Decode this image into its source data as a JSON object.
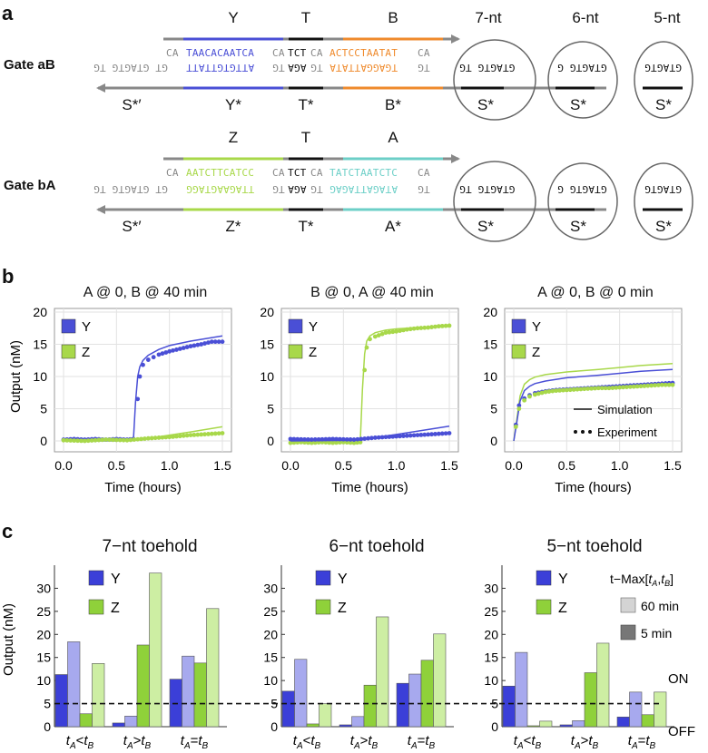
{
  "panel_labels": {
    "a": "a",
    "b": "b",
    "c": "c"
  },
  "panel_a": {
    "toehold_headers": [
      "7-nt",
      "6-nt",
      "5-nt"
    ],
    "gates": [
      {
        "name": "Gate aB",
        "top_domains": [
          "Y",
          "T",
          "B"
        ],
        "bottom_domains": [
          "S*′",
          "Y*",
          "T*",
          "B*",
          "S*"
        ],
        "top_seq": {
          "ca1": "CA",
          "d1": "TAACACAATCA",
          "ca2": "CA",
          "t": "TCT",
          "ca3": "CA",
          "d2": "ACTCCTAATAT",
          "ca4": "CA"
        },
        "bottom_seq": {
          "left": "GT GTAGTG TG",
          "d1": "ATTGTGTTATT",
          "tg1": "TG",
          "t": "AGA",
          "tg2": "TG",
          "d2": "TGAGGATTATA",
          "tg3": "TG",
          "s7": "GTAGTG TG"
        },
        "toehold_seqs": [
          "GTAGTG TG",
          "GTAGTG G",
          "GTAGTG"
        ],
        "d1_color": "#4a4fd6",
        "d2_color": "#ef8a2c"
      },
      {
        "name": "Gate bA",
        "top_domains": [
          "Z",
          "T",
          "A"
        ],
        "bottom_domains": [
          "S*′",
          "Z*",
          "T*",
          "A*",
          "S*"
        ],
        "top_seq": {
          "ca1": "CA",
          "d1": "AATCTTCATCC",
          "ca2": "CA",
          "t": "TCT",
          "ca3": "CA",
          "d2": "TATCTAATCTC",
          "ca4": "CA"
        },
        "bottom_seq": {
          "left": "GT GTAGTG TG",
          "d1": "TTAGAAGTAGG",
          "tg1": "TG",
          "t": "AGA",
          "tg2": "TG",
          "d2": "ATAGATTAGAG",
          "tg3": "TG",
          "s7": "GTAGTG TG"
        },
        "toehold_seqs": [
          "GTAGTG TG",
          "GTAGTG G",
          "GTAGTG"
        ],
        "d1_color": "#a8d84a",
        "d2_color": "#6ccfc7"
      }
    ]
  },
  "panel_b": {
    "plots": [
      {
        "title": "A @ 0, B @ 40 min"
      },
      {
        "title": "B @ 0, A @ 40 min"
      },
      {
        "title": "A @ 0, B @ 0 min"
      }
    ],
    "ylabel": "Output (nM)",
    "xlabel": "Time (hours)",
    "x_ticks": [
      "0.0",
      "0.5",
      "1.0",
      "1.5"
    ],
    "y_ticks": [
      "0",
      "5",
      "10",
      "15",
      "20"
    ],
    "legend": {
      "Y": "Y",
      "Z": "Z"
    },
    "line_legend": {
      "sim": "Simulation",
      "exp": "Experiment"
    }
  },
  "panel_c": {
    "ylabel": "Output (nM)",
    "y_ticks": [
      "0",
      "5",
      "10",
      "15",
      "20",
      "25",
      "30"
    ],
    "on_label": "ON",
    "off_label": "OFF",
    "legend_title": "t−Max[tA,tB]",
    "legend_items": [
      "60 min",
      "5 min"
    ]
  },
  "chart_data": [
    {
      "type": "line",
      "title": "A @ 0, B @ 40 min",
      "xlabel": "Time (hours)",
      "ylabel": "Output (nM)",
      "xlim": [
        0,
        1.5
      ],
      "ylim": [
        0,
        20
      ],
      "series": [
        {
          "name": "Y simulation",
          "x": [
            0,
            0.5,
            0.66,
            0.68,
            0.7,
            0.72,
            0.75,
            0.8,
            0.9,
            1.0,
            1.2,
            1.5
          ],
          "y": [
            0,
            0,
            0.2,
            6,
            10,
            11.5,
            12.5,
            13.3,
            14.2,
            14.8,
            15.5,
            16.3
          ]
        },
        {
          "name": "Y experiment",
          "x": [
            0.0,
            0.1,
            0.2,
            0.3,
            0.4,
            0.5,
            0.6,
            0.66,
            0.7,
            0.72,
            0.75,
            0.8,
            0.85,
            0.9,
            1.0,
            1.1,
            1.2,
            1.3,
            1.4,
            1.5
          ],
          "y": [
            0.2,
            0.3,
            0.2,
            0.3,
            0.2,
            0.3,
            0.2,
            0.3,
            6.5,
            10,
            11.8,
            12.6,
            13.0,
            13.4,
            13.9,
            14.3,
            14.7,
            15.0,
            15.4,
            15.4
          ]
        },
        {
          "name": "Z simulation",
          "x": [
            0,
            0.6,
            0.8,
            1.0,
            1.2,
            1.5
          ],
          "y": [
            0,
            0.1,
            0.4,
            0.9,
            1.4,
            2.2
          ]
        },
        {
          "name": "Z experiment",
          "x": [
            0.0,
            0.2,
            0.4,
            0.6,
            0.8,
            1.0,
            1.2,
            1.4,
            1.5
          ],
          "y": [
            0.1,
            0.0,
            0.2,
            0.1,
            0.4,
            0.6,
            0.9,
            1.1,
            1.2
          ]
        }
      ]
    },
    {
      "type": "line",
      "title": "B @ 0, A @ 40 min",
      "xlabel": "Time (hours)",
      "ylabel": "Output (nM)",
      "xlim": [
        0,
        1.5
      ],
      "ylim": [
        0,
        20
      ],
      "series": [
        {
          "name": "Z simulation",
          "x": [
            0,
            0.5,
            0.66,
            0.68,
            0.7,
            0.72,
            0.75,
            0.8,
            0.9,
            1.0,
            1.2,
            1.5
          ],
          "y": [
            0,
            0,
            0.2,
            8,
            13.5,
            15.5,
            16.3,
            16.8,
            17.2,
            17.4,
            17.6,
            17.8
          ]
        },
        {
          "name": "Z experiment",
          "x": [
            0.0,
            0.1,
            0.2,
            0.3,
            0.4,
            0.5,
            0.6,
            0.66,
            0.7,
            0.72,
            0.75,
            0.8,
            0.9,
            1.0,
            1.1,
            1.2,
            1.3,
            1.4,
            1.5
          ],
          "y": [
            -0.3,
            -0.2,
            -0.3,
            -0.2,
            -0.3,
            -0.2,
            -0.3,
            -0.2,
            11,
            14.5,
            15.8,
            16.2,
            16.8,
            17.0,
            17.3,
            17.5,
            17.6,
            17.8,
            17.9
          ]
        },
        {
          "name": "Y simulation",
          "x": [
            0,
            0.6,
            0.8,
            1.0,
            1.2,
            1.5
          ],
          "y": [
            0,
            0.1,
            0.5,
            1.0,
            1.5,
            2.3
          ]
        },
        {
          "name": "Y experiment",
          "x": [
            0.0,
            0.2,
            0.4,
            0.6,
            0.8,
            1.0,
            1.2,
            1.4,
            1.5
          ],
          "y": [
            0.3,
            0.2,
            0.3,
            0.2,
            0.5,
            0.7,
            0.9,
            1.1,
            1.2
          ]
        }
      ]
    },
    {
      "type": "line",
      "title": "A @ 0, B @ 0 min",
      "xlabel": "Time (hours)",
      "ylabel": "Output (nM)",
      "xlim": [
        0,
        1.5
      ],
      "ylim": [
        0,
        20
      ],
      "series": [
        {
          "name": "Z simulation",
          "x": [
            0,
            0.03,
            0.06,
            0.1,
            0.15,
            0.2,
            0.3,
            0.5,
            0.8,
            1.0,
            1.2,
            1.5
          ],
          "y": [
            0,
            3.5,
            7,
            8.8,
            9.5,
            9.9,
            10.3,
            10.7,
            11.1,
            11.4,
            11.7,
            12.0
          ]
        },
        {
          "name": "Y simulation",
          "x": [
            0,
            0.03,
            0.06,
            0.1,
            0.15,
            0.2,
            0.3,
            0.5,
            0.8,
            1.0,
            1.2,
            1.5
          ],
          "y": [
            0,
            3,
            6.2,
            7.8,
            8.5,
            8.9,
            9.3,
            9.8,
            10.2,
            10.5,
            10.8,
            11.1
          ]
        },
        {
          "name": "Y experiment",
          "x": [
            0.02,
            0.05,
            0.1,
            0.15,
            0.2,
            0.3,
            0.4,
            0.5,
            0.6,
            0.7,
            0.8,
            0.9,
            1.0,
            1.1,
            1.2,
            1.3,
            1.4,
            1.5
          ],
          "y": [
            2.5,
            5.5,
            6.6,
            7.1,
            7.4,
            7.7,
            7.9,
            8.0,
            8.1,
            8.2,
            8.3,
            8.4,
            8.5,
            8.6,
            8.7,
            8.8,
            8.9,
            9.0
          ]
        },
        {
          "name": "Z experiment",
          "x": [
            0.02,
            0.05,
            0.1,
            0.15,
            0.2,
            0.3,
            0.4,
            0.5,
            0.6,
            0.7,
            0.8,
            0.9,
            1.0,
            1.1,
            1.2,
            1.3,
            1.4,
            1.5
          ],
          "y": [
            2.2,
            5.0,
            6.3,
            6.9,
            7.2,
            7.6,
            7.8,
            7.9,
            8.0,
            8.1,
            8.2,
            8.2,
            8.3,
            8.4,
            8.5,
            8.6,
            8.7,
            8.7
          ]
        }
      ],
      "legend": [
        "Simulation",
        "Experiment"
      ]
    },
    {
      "type": "bar",
      "title": "7−nt toehold",
      "ylabel": "Output (nM)",
      "ylim": [
        0,
        35
      ],
      "categories": [
        "tA<tB",
        "tA>tB",
        "tA=tB"
      ],
      "series": [
        {
          "name": "Y 5 min",
          "values": [
            11.3,
            0.8,
            10.3
          ]
        },
        {
          "name": "Y 60 min",
          "values": [
            18.4,
            2.3,
            15.3
          ]
        },
        {
          "name": "Z 5 min",
          "values": [
            2.8,
            17.7,
            13.8
          ]
        },
        {
          "name": "Z 60 min",
          "values": [
            13.7,
            33.3,
            25.6
          ]
        }
      ],
      "threshold": 5
    },
    {
      "type": "bar",
      "title": "6−nt toehold",
      "ylabel": "Output (nM)",
      "ylim": [
        0,
        35
      ],
      "categories": [
        "tA<tB",
        "tA>tB",
        "tA=tB"
      ],
      "series": [
        {
          "name": "Y 5 min",
          "values": [
            7.7,
            0.4,
            9.4
          ]
        },
        {
          "name": "Y 60 min",
          "values": [
            14.6,
            2.2,
            11.4
          ]
        },
        {
          "name": "Z 5 min",
          "values": [
            0.6,
            9.0,
            14.4
          ]
        },
        {
          "name": "Z 60 min",
          "values": [
            5.0,
            23.8,
            20.1
          ]
        }
      ],
      "threshold": 5
    },
    {
      "type": "bar",
      "title": "5−nt toehold",
      "ylabel": "Output (nM)",
      "ylim": [
        0,
        35
      ],
      "categories": [
        "tA<tB",
        "tA>tB",
        "tA=tB"
      ],
      "series": [
        {
          "name": "Y 5 min",
          "values": [
            8.8,
            0.4,
            2.1
          ]
        },
        {
          "name": "Y 60 min",
          "values": [
            16.1,
            1.3,
            7.5
          ]
        },
        {
          "name": "Z 5 min",
          "values": [
            0.2,
            11.7,
            2.6
          ]
        },
        {
          "name": "Z 60 min",
          "values": [
            1.2,
            18.1,
            7.5
          ]
        }
      ],
      "threshold": 5
    }
  ]
}
